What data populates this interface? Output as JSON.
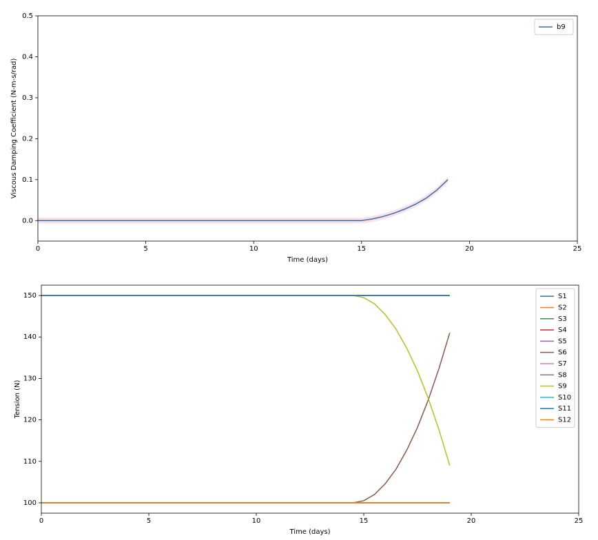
{
  "chart_data": [
    {
      "type": "line",
      "x_label": "Time (days)",
      "y_label": "Viscous Damping Coefficient (N-m-s/rad)",
      "x": [
        0,
        0.5,
        1,
        1.5,
        2,
        2.5,
        3,
        3.5,
        4,
        4.5,
        5,
        5.5,
        6,
        6.5,
        7,
        7.5,
        8,
        8.5,
        9,
        9.5,
        10,
        10.5,
        11,
        11.5,
        12,
        12.5,
        13,
        13.5,
        14,
        14.5,
        15,
        15.5,
        16,
        16.5,
        17,
        17.5,
        18,
        18.5,
        19
      ],
      "series": [
        {
          "name": "b9",
          "color": "#1f77b4",
          "values": [
            0,
            0,
            0,
            0,
            0,
            0,
            0,
            0,
            0,
            0,
            0,
            0,
            0,
            0,
            0,
            0,
            0,
            0,
            0,
            0,
            0,
            0,
            0,
            0,
            0,
            0,
            0,
            0,
            0,
            0,
            0,
            0.004,
            0.01,
            0.018,
            0.028,
            0.04,
            0.055,
            0.075,
            0.1
          ]
        }
      ],
      "band": {
        "color": "#ffc0cb",
        "lower": [
          -0.007,
          -0.007,
          -0.007,
          -0.007,
          -0.007,
          -0.007,
          -0.007,
          -0.007,
          -0.007,
          -0.007,
          -0.007,
          -0.007,
          -0.007,
          -0.007,
          -0.007,
          -0.007,
          -0.007,
          -0.007,
          -0.007,
          -0.007,
          -0.007,
          -0.007,
          -0.007,
          -0.007,
          -0.007,
          -0.007,
          -0.007,
          -0.007,
          -0.007,
          -0.007,
          -0.007,
          -0.003,
          0.003,
          0.011,
          0.021,
          0.033,
          0.048,
          0.068,
          0.093
        ],
        "upper": [
          0.007,
          0.007,
          0.007,
          0.007,
          0.007,
          0.007,
          0.007,
          0.007,
          0.007,
          0.007,
          0.007,
          0.007,
          0.007,
          0.007,
          0.007,
          0.007,
          0.007,
          0.007,
          0.007,
          0.007,
          0.007,
          0.007,
          0.007,
          0.007,
          0.007,
          0.007,
          0.007,
          0.007,
          0.007,
          0.007,
          0.007,
          0.011,
          0.017,
          0.025,
          0.035,
          0.047,
          0.062,
          0.082,
          0.107
        ]
      },
      "xlim": [
        0,
        25
      ],
      "xticks": [
        0,
        5,
        10,
        15,
        20,
        25
      ],
      "ylim": [
        -0.05,
        0.5
      ],
      "yticks": [
        {
          "value": 0,
          "label": "0.0"
        },
        0.1,
        0.2,
        0.3,
        0.4,
        0.5
      ],
      "legend": "upper right"
    },
    {
      "type": "line",
      "x_label": "Time (days)",
      "y_label": "Tension (N)",
      "x": [
        0,
        0.5,
        1,
        1.5,
        2,
        2.5,
        3,
        3.5,
        4,
        4.5,
        5,
        5.5,
        6,
        6.5,
        7,
        7.5,
        8,
        8.5,
        9,
        9.5,
        10,
        10.5,
        11,
        11.5,
        12,
        12.5,
        13,
        13.5,
        14,
        14.5,
        15,
        15.5,
        16,
        16.5,
        17,
        17.5,
        18,
        18.5,
        19
      ],
      "series": [
        {
          "name": "S1",
          "color": "#1f77b4",
          "values": [
            150,
            150,
            150,
            150,
            150,
            150,
            150,
            150,
            150,
            150,
            150,
            150,
            150,
            150,
            150,
            150,
            150,
            150,
            150,
            150,
            150,
            150,
            150,
            150,
            150,
            150,
            150,
            150,
            150,
            150,
            150,
            150,
            150,
            150,
            150,
            150,
            150,
            150,
            150
          ]
        },
        {
          "name": "S2",
          "color": "#ff7f0e",
          "values": [
            100,
            100,
            100,
            100,
            100,
            100,
            100,
            100,
            100,
            100,
            100,
            100,
            100,
            100,
            100,
            100,
            100,
            100,
            100,
            100,
            100,
            100,
            100,
            100,
            100,
            100,
            100,
            100,
            100,
            100,
            100,
            100,
            100,
            100,
            100,
            100,
            100,
            100,
            100
          ]
        },
        {
          "name": "S3",
          "color": "#2ca02c",
          "values": [
            150,
            150,
            150,
            150,
            150,
            150,
            150,
            150,
            150,
            150,
            150,
            150,
            150,
            150,
            150,
            150,
            150,
            150,
            150,
            150,
            150,
            150,
            150,
            150,
            150,
            150,
            150,
            150,
            150,
            150,
            150,
            150,
            150,
            150,
            150,
            150,
            150,
            150,
            150
          ]
        },
        {
          "name": "S4",
          "color": "#d62728",
          "values": [
            100,
            100,
            100,
            100,
            100,
            100,
            100,
            100,
            100,
            100,
            100,
            100,
            100,
            100,
            100,
            100,
            100,
            100,
            100,
            100,
            100,
            100,
            100,
            100,
            100,
            100,
            100,
            100,
            100,
            100,
            100,
            100,
            100,
            100,
            100,
            100,
            100,
            100,
            100
          ]
        },
        {
          "name": "S5",
          "color": "#9467bd",
          "values": [
            150,
            150,
            150,
            150,
            150,
            150,
            150,
            150,
            150,
            150,
            150,
            150,
            150,
            150,
            150,
            150,
            150,
            150,
            150,
            150,
            150,
            150,
            150,
            150,
            150,
            150,
            150,
            150,
            150,
            150,
            150,
            150,
            150,
            150,
            150,
            150,
            150,
            150,
            150
          ]
        },
        {
          "name": "S6",
          "color": "#8c564b",
          "values": [
            100,
            100,
            100,
            100,
            100,
            100,
            100,
            100,
            100,
            100,
            100,
            100,
            100,
            100,
            100,
            100,
            100,
            100,
            100,
            100,
            100,
            100,
            100,
            100,
            100,
            100,
            100,
            100,
            100,
            100,
            100.5,
            102,
            104.6,
            108.1,
            112.7,
            118.2,
            124.8,
            132.4,
            141
          ]
        },
        {
          "name": "S7",
          "color": "#e377c2",
          "values": [
            150,
            150,
            150,
            150,
            150,
            150,
            150,
            150,
            150,
            150,
            150,
            150,
            150,
            150,
            150,
            150,
            150,
            150,
            150,
            150,
            150,
            150,
            150,
            150,
            150,
            150,
            150,
            150,
            150,
            150,
            150,
            150,
            150,
            150,
            150,
            150,
            150,
            150,
            150
          ]
        },
        {
          "name": "S8",
          "color": "#7f7f7f",
          "values": [
            100,
            100,
            100,
            100,
            100,
            100,
            100,
            100,
            100,
            100,
            100,
            100,
            100,
            100,
            100,
            100,
            100,
            100,
            100,
            100,
            100,
            100,
            100,
            100,
            100,
            100,
            100,
            100,
            100,
            100,
            100,
            100,
            100,
            100,
            100,
            100,
            100,
            100,
            100
          ]
        },
        {
          "name": "S9",
          "color": "#bcbd22",
          "values": [
            150,
            150,
            150,
            150,
            150,
            150,
            150,
            150,
            150,
            150,
            150,
            150,
            150,
            150,
            150,
            150,
            150,
            150,
            150,
            150,
            150,
            150,
            150,
            150,
            150,
            150,
            150,
            150,
            150,
            150,
            149.5,
            148,
            145.4,
            141.9,
            137.3,
            131.8,
            125.2,
            117.6,
            109
          ]
        },
        {
          "name": "S10",
          "color": "#17becf",
          "values": [
            100,
            100,
            100,
            100,
            100,
            100,
            100,
            100,
            100,
            100,
            100,
            100,
            100,
            100,
            100,
            100,
            100,
            100,
            100,
            100,
            100,
            100,
            100,
            100,
            100,
            100,
            100,
            100,
            100,
            100,
            100,
            100,
            100,
            100,
            100,
            100,
            100,
            100,
            100
          ]
        },
        {
          "name": "S11",
          "color": "#1f77b4",
          "values": [
            150,
            150,
            150,
            150,
            150,
            150,
            150,
            150,
            150,
            150,
            150,
            150,
            150,
            150,
            150,
            150,
            150,
            150,
            150,
            150,
            150,
            150,
            150,
            150,
            150,
            150,
            150,
            150,
            150,
            150,
            150,
            150,
            150,
            150,
            150,
            150,
            150,
            150,
            150
          ]
        },
        {
          "name": "S12",
          "color": "#ff7f0e",
          "values": [
            100,
            100,
            100,
            100,
            100,
            100,
            100,
            100,
            100,
            100,
            100,
            100,
            100,
            100,
            100,
            100,
            100,
            100,
            100,
            100,
            100,
            100,
            100,
            100,
            100,
            100,
            100,
            100,
            100,
            100,
            100,
            100,
            100,
            100,
            100,
            100,
            100,
            100,
            100
          ]
        }
      ],
      "xlim": [
        0,
        25
      ],
      "xticks": [
        0,
        5,
        10,
        15,
        20,
        25
      ],
      "ylim": [
        97.5,
        152.5
      ],
      "yticks": [
        100,
        110,
        120,
        130,
        140,
        150
      ],
      "legend": "upper right"
    }
  ]
}
